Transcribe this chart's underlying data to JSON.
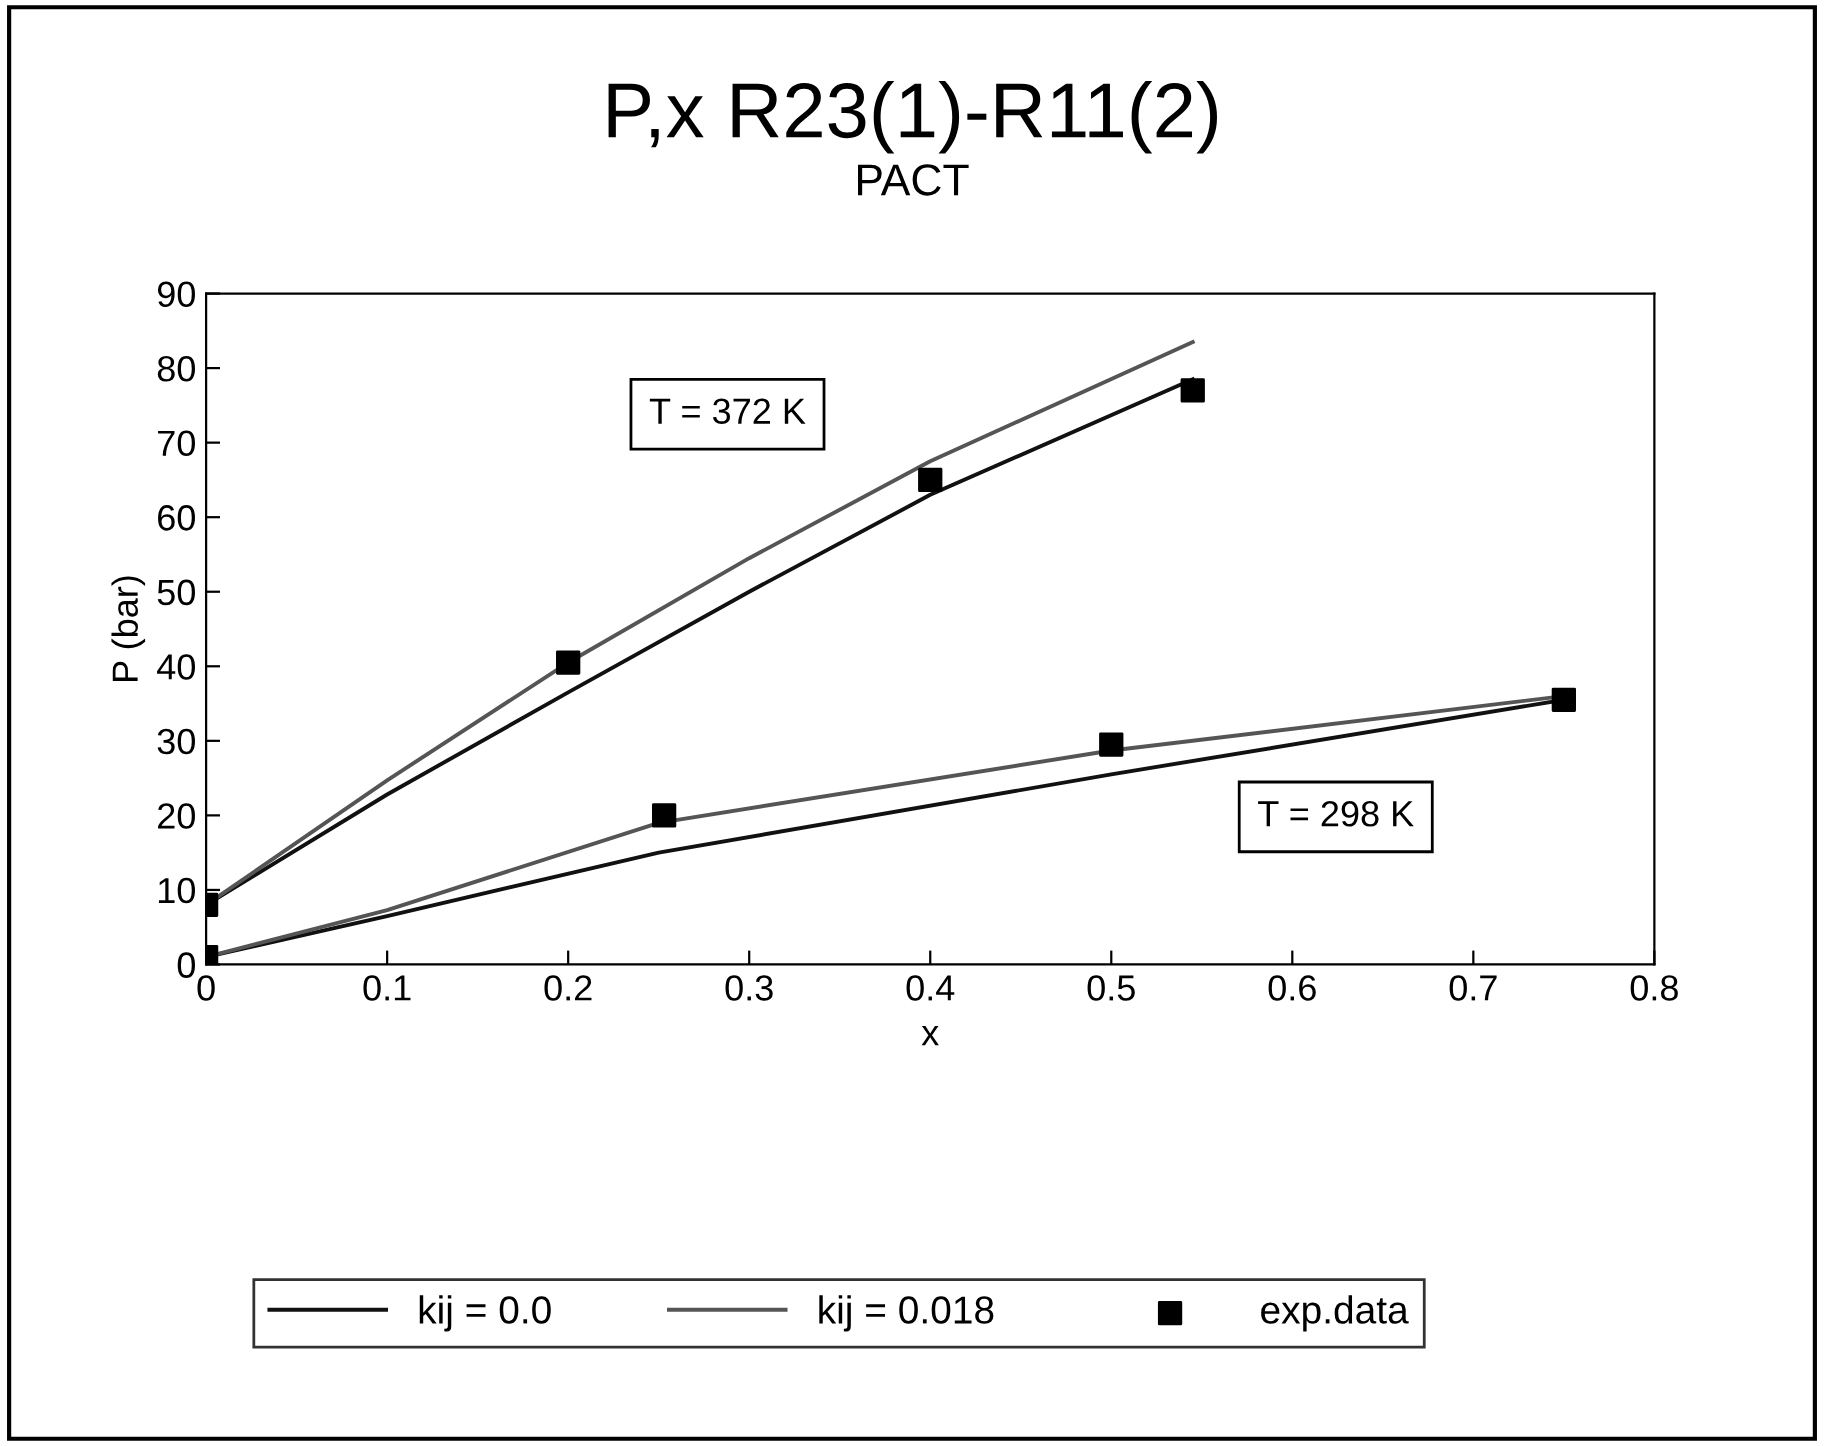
{
  "chart_data": {
    "type": "line",
    "title": "P,x R23(1)-R11(2)",
    "subtitle": "PACT",
    "xlabel": "x",
    "ylabel": "P (bar)",
    "xlim": [
      0,
      0.8
    ],
    "xticks": [
      0,
      0.1,
      0.2,
      0.3,
      0.4,
      0.5,
      0.6,
      0.7,
      0.8
    ],
    "ylim": [
      0,
      90
    ],
    "yticks": [
      0,
      10,
      20,
      30,
      40,
      50,
      60,
      70,
      80,
      90
    ],
    "grid": false,
    "legend": "bottom",
    "annotations": [
      "T = 372 K",
      "T = 298 K"
    ],
    "series": [
      {
        "name": "kij = 0.0",
        "color": "#111111",
        "line_style": "solid",
        "marker": "none",
        "x": [
          0,
          0.1,
          0.2,
          0.3,
          0.4,
          0.545
        ],
        "values": [
          8,
          22.8,
          36.5,
          50,
          63,
          78.5
        ]
      },
      {
        "color": "#111111",
        "line_style": "solid",
        "marker": "none",
        "x": [
          0,
          0.1,
          0.25,
          0.5,
          0.75
        ],
        "values": [
          1,
          6.5,
          15,
          25.5,
          35.5
        ]
      },
      {
        "name": "kij = 0.018",
        "color": "#555555",
        "line_style": "solid",
        "marker": "none",
        "x": [
          0,
          0.1,
          0.2,
          0.3,
          0.4,
          0.545
        ],
        "values": [
          8,
          24.7,
          40.5,
          54.5,
          67.5,
          83.5
        ]
      },
      {
        "color": "#555555",
        "line_style": "solid",
        "marker": "none",
        "x": [
          0,
          0.1,
          0.25,
          0.5,
          0.75
        ],
        "values": [
          1,
          7.3,
          19,
          28.7,
          36
        ]
      },
      {
        "name": "exp.data",
        "type": "scatter",
        "color": "#000000",
        "marker": "square",
        "x": [
          0,
          0.2,
          0.4,
          0.545,
          0,
          0.253,
          0.5,
          0.75
        ],
        "values": [
          8,
          40.5,
          65,
          77,
          1,
          20,
          29.5,
          35.5
        ]
      }
    ]
  }
}
